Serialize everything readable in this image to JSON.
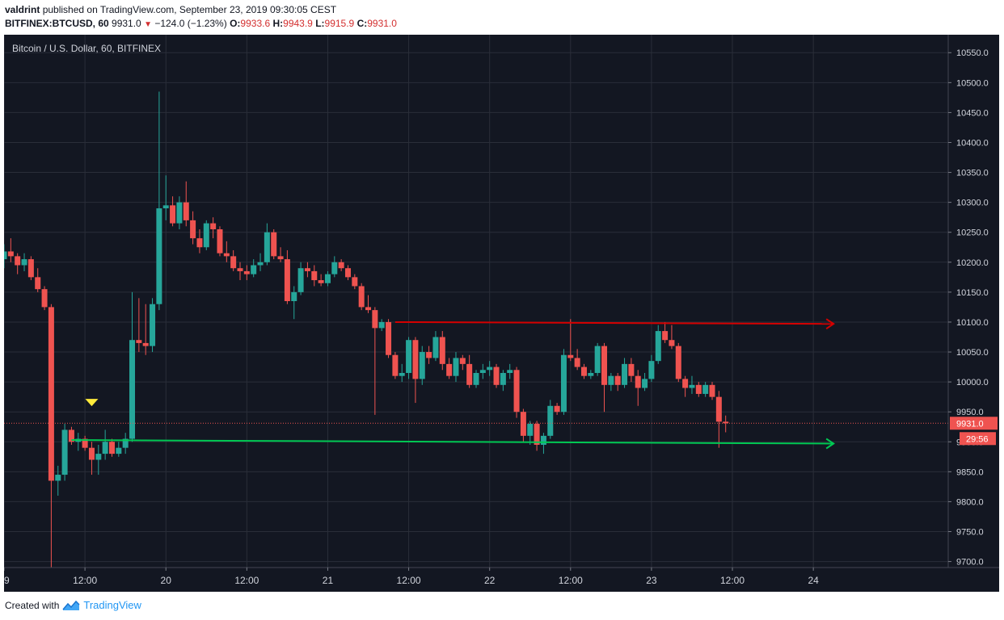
{
  "header": {
    "author": "valdrint",
    "published_text": "published on TradingView.com, September 23, 2019 09:30:05 CEST",
    "symbol": "BITFINEX:BTCUSD, 60",
    "last": "9931.0",
    "change": "−124.0 (−1.23%)",
    "o_label": "O:",
    "o_value": "9933.6",
    "h_label": "H:",
    "h_value": "9943.9",
    "l_label": "L:",
    "l_value": "9915.9",
    "c_label": "C:",
    "c_value": "9931.0"
  },
  "footer": {
    "created_with": "Created with",
    "brand": "TradingView"
  },
  "colors": {
    "background": "#131722",
    "grid": "#2a2e39",
    "up": "#26a69a",
    "down": "#ef5350",
    "resistance": "#d50000",
    "support": "#00c853",
    "marker": "#ffeb3b"
  },
  "chart_data": {
    "type": "candlestick",
    "title": "Bitcoin / U.S. Dollar, 60, BITFINEX",
    "ylim": [
      9690,
      10580
    ],
    "y_ticks": [
      9700,
      9750,
      9800,
      9850,
      9900,
      9950,
      10000,
      10050,
      10100,
      10150,
      10200,
      10250,
      10300,
      10350,
      10400,
      10450,
      10500,
      10550
    ],
    "y_tick_labels": [
      "9700.0",
      "9750.0",
      "9800.0",
      "9850.0",
      "9900.0",
      "9950.0",
      "10000.0",
      "10050.0",
      "10100.0",
      "10150.0",
      "10200.0",
      "10250.0",
      "10300.0",
      "10350.0",
      "10400.0",
      "10450.0",
      "10500.0",
      "10550.0"
    ],
    "x_start": "2019-09-19T00:00",
    "x_end": "2019-09-24T20:00",
    "x_ticks": [
      "2019-09-19T00:00",
      "2019-09-19T12:00",
      "2019-09-20T00:00",
      "2019-09-20T12:00",
      "2019-09-21T00:00",
      "2019-09-21T12:00",
      "2019-09-22T00:00",
      "2019-09-22T12:00",
      "2019-09-23T00:00",
      "2019-09-23T12:00",
      "2019-09-24T00:00"
    ],
    "x_tick_labels": [
      "19",
      "12:00",
      "20",
      "12:00",
      "21",
      "12:00",
      "22",
      "12:00",
      "23",
      "12:00",
      "24"
    ],
    "current_price": "9931.0",
    "countdown": "29:56",
    "annotations": [
      {
        "type": "line",
        "color": "#d50000",
        "from": [
          "2019-09-21T10:00",
          10100
        ],
        "to": [
          "2019-09-24T03:00",
          10097
        ]
      },
      {
        "type": "line",
        "color": "#00c853",
        "from": [
          "2019-09-19T10:00",
          9903
        ],
        "to": [
          "2019-09-24T03:00",
          9897
        ]
      },
      {
        "type": "marker",
        "color": "#ffeb3b",
        "at": [
          "2019-09-19T13:00",
          9965
        ]
      }
    ],
    "candles": [
      [
        "2019-09-19T00:00",
        10205,
        10230,
        10190,
        10218
      ],
      [
        "2019-09-19T01:00",
        10218,
        10240,
        10200,
        10210
      ],
      [
        "2019-09-19T02:00",
        10210,
        10215,
        10180,
        10195
      ],
      [
        "2019-09-19T03:00",
        10195,
        10215,
        10185,
        10205
      ],
      [
        "2019-09-19T04:00",
        10205,
        10210,
        10170,
        10175
      ],
      [
        "2019-09-19T05:00",
        10175,
        10190,
        10150,
        10155
      ],
      [
        "2019-09-19T06:00",
        10155,
        10160,
        10120,
        10125
      ],
      [
        "2019-09-19T07:00",
        10125,
        10130,
        9690,
        9835
      ],
      [
        "2019-09-19T08:00",
        9835,
        9860,
        9810,
        9845
      ],
      [
        "2019-09-19T09:00",
        9845,
        9930,
        9835,
        9920
      ],
      [
        "2019-09-19T10:00",
        9920,
        9925,
        9895,
        9900
      ],
      [
        "2019-09-19T11:00",
        9900,
        9915,
        9885,
        9905
      ],
      [
        "2019-09-19T12:00",
        9905,
        9910,
        9885,
        9890
      ],
      [
        "2019-09-19T13:00",
        9890,
        9900,
        9845,
        9870
      ],
      [
        "2019-09-19T14:00",
        9870,
        9895,
        9845,
        9880
      ],
      [
        "2019-09-19T15:00",
        9880,
        9920,
        9870,
        9900
      ],
      [
        "2019-09-19T16:00",
        9900,
        9905,
        9875,
        9880
      ],
      [
        "2019-09-19T17:00",
        9880,
        9900,
        9875,
        9890
      ],
      [
        "2019-09-19T18:00",
        9890,
        9915,
        9880,
        9905
      ],
      [
        "2019-09-19T19:00",
        9905,
        10150,
        9900,
        10070
      ],
      [
        "2019-09-19T20:00",
        10070,
        10140,
        10050,
        10065
      ],
      [
        "2019-09-19T21:00",
        10065,
        10130,
        10045,
        10060
      ],
      [
        "2019-09-19T22:00",
        10060,
        10140,
        10050,
        10130
      ],
      [
        "2019-09-19T23:00",
        10130,
        10485,
        10120,
        10290
      ],
      [
        "2019-09-20T00:00",
        10290,
        10345,
        10270,
        10295
      ],
      [
        "2019-09-20T01:00",
        10295,
        10310,
        10260,
        10265
      ],
      [
        "2019-09-20T02:00",
        10265,
        10310,
        10255,
        10300
      ],
      [
        "2019-09-20T03:00",
        10300,
        10335,
        10260,
        10270
      ],
      [
        "2019-09-20T04:00",
        10270,
        10285,
        10230,
        10240
      ],
      [
        "2019-09-20T05:00",
        10240,
        10255,
        10215,
        10225
      ],
      [
        "2019-09-20T06:00",
        10225,
        10270,
        10220,
        10265
      ],
      [
        "2019-09-20T07:00",
        10265,
        10275,
        10240,
        10255
      ],
      [
        "2019-09-20T08:00",
        10255,
        10260,
        10210,
        10215
      ],
      [
        "2019-09-20T09:00",
        10215,
        10235,
        10200,
        10210
      ],
      [
        "2019-09-20T10:00",
        10210,
        10220,
        10185,
        10190
      ],
      [
        "2019-09-20T11:00",
        10190,
        10200,
        10170,
        10185
      ],
      [
        "2019-09-20T12:00",
        10185,
        10195,
        10170,
        10180
      ],
      [
        "2019-09-20T13:00",
        10180,
        10205,
        10175,
        10195
      ],
      [
        "2019-09-20T14:00",
        10195,
        10215,
        10185,
        10200
      ],
      [
        "2019-09-20T15:00",
        10200,
        10265,
        10195,
        10250
      ],
      [
        "2019-09-20T16:00",
        10250,
        10255,
        10205,
        10210
      ],
      [
        "2019-09-20T17:00",
        10210,
        10225,
        10200,
        10205
      ],
      [
        "2019-09-20T18:00",
        10205,
        10220,
        10130,
        10135
      ],
      [
        "2019-09-20T19:00",
        10135,
        10160,
        10105,
        10150
      ],
      [
        "2019-09-20T20:00",
        10150,
        10200,
        10145,
        10190
      ],
      [
        "2019-09-20T21:00",
        10190,
        10200,
        10175,
        10185
      ],
      [
        "2019-09-20T22:00",
        10185,
        10195,
        10160,
        10170
      ],
      [
        "2019-09-20T23:00",
        10170,
        10180,
        10160,
        10165
      ],
      [
        "2019-09-21T00:00",
        10165,
        10185,
        10160,
        10180
      ],
      [
        "2019-09-21T01:00",
        10180,
        10210,
        10175,
        10200
      ],
      [
        "2019-09-21T02:00",
        10200,
        10205,
        10185,
        10190
      ],
      [
        "2019-09-21T03:00",
        10190,
        10195,
        10170,
        10175
      ],
      [
        "2019-09-21T04:00",
        10175,
        10180,
        10155,
        10160
      ],
      [
        "2019-09-21T05:00",
        10160,
        10165,
        10120,
        10125
      ],
      [
        "2019-09-21T06:00",
        10125,
        10145,
        10115,
        10120
      ],
      [
        "2019-09-21T07:00",
        10120,
        10125,
        9945,
        10090
      ],
      [
        "2019-09-21T08:00",
        10090,
        10105,
        10085,
        10100
      ],
      [
        "2019-09-21T09:00",
        10100,
        10105,
        10040,
        10045
      ],
      [
        "2019-09-21T10:00",
        10045,
        10050,
        10005,
        10010
      ],
      [
        "2019-09-21T11:00",
        10010,
        10030,
        10000,
        10015
      ],
      [
        "2019-09-21T12:00",
        10015,
        10075,
        10005,
        10070
      ],
      [
        "2019-09-21T13:00",
        10070,
        10075,
        9965,
        10005
      ],
      [
        "2019-09-21T14:00",
        10005,
        10060,
        9995,
        10050
      ],
      [
        "2019-09-21T15:00",
        10050,
        10060,
        10030,
        10040
      ],
      [
        "2019-09-21T16:00",
        10040,
        10085,
        10035,
        10075
      ],
      [
        "2019-09-21T17:00",
        10075,
        10085,
        10020,
        10030
      ],
      [
        "2019-09-21T18:00",
        10030,
        10040,
        10005,
        10010
      ],
      [
        "2019-09-21T19:00",
        10010,
        10050,
        10000,
        10040
      ],
      [
        "2019-09-21T20:00",
        10040,
        10045,
        10020,
        10030
      ],
      [
        "2019-09-21T21:00",
        10030,
        10045,
        9990,
        9995
      ],
      [
        "2019-09-21T22:00",
        9995,
        10020,
        9990,
        10015
      ],
      [
        "2019-09-21T23:00",
        10015,
        10030,
        10005,
        10020
      ],
      [
        "2019-09-22T00:00",
        10020,
        10035,
        10010,
        10025
      ],
      [
        "2019-09-22T01:00",
        10025,
        10030,
        9990,
        9995
      ],
      [
        "2019-09-22T02:00",
        9995,
        10020,
        9985,
        10015
      ],
      [
        "2019-09-22T03:00",
        10015,
        10030,
        10005,
        10020
      ],
      [
        "2019-09-22T04:00",
        10020,
        10025,
        9940,
        9950
      ],
      [
        "2019-09-22T05:00",
        9950,
        9955,
        9900,
        9910
      ],
      [
        "2019-09-22T06:00",
        9910,
        9935,
        9895,
        9930
      ],
      [
        "2019-09-22T07:00",
        9930,
        9935,
        9885,
        9895
      ],
      [
        "2019-09-22T08:00",
        9895,
        9915,
        9880,
        9910
      ],
      [
        "2019-09-22T09:00",
        9910,
        9970,
        9905,
        9960
      ],
      [
        "2019-09-22T10:00",
        9960,
        9965,
        9945,
        9950
      ],
      [
        "2019-09-22T11:00",
        9950,
        10055,
        9945,
        10045
      ],
      [
        "2019-09-22T12:00",
        10045,
        10105,
        10035,
        10040
      ],
      [
        "2019-09-22T13:00",
        10040,
        10055,
        10020,
        10025
      ],
      [
        "2019-09-22T14:00",
        10025,
        10030,
        10005,
        10010
      ],
      [
        "2019-09-22T15:00",
        10010,
        10020,
        10005,
        10015
      ],
      [
        "2019-09-22T16:00",
        10015,
        10065,
        10010,
        10060
      ],
      [
        "2019-09-22T17:00",
        10060,
        10065,
        9950,
        9995
      ],
      [
        "2019-09-22T18:00",
        9995,
        10015,
        9985,
        10010
      ],
      [
        "2019-09-22T19:00",
        10010,
        10015,
        9985,
        9995
      ],
      [
        "2019-09-22T20:00",
        9995,
        10040,
        9990,
        10030
      ],
      [
        "2019-09-22T21:00",
        10030,
        10040,
        10000,
        10010
      ],
      [
        "2019-09-22T22:00",
        10010,
        10020,
        9960,
        9990
      ],
      [
        "2019-09-22T23:00",
        9990,
        10015,
        9985,
        10005
      ],
      [
        "2019-09-23T00:00",
        10005,
        10045,
        10000,
        10035
      ],
      [
        "2019-09-23T01:00",
        10035,
        10095,
        10030,
        10085
      ],
      [
        "2019-09-23T02:00",
        10085,
        10100,
        10065,
        10070
      ],
      [
        "2019-09-23T03:00",
        10070,
        10095,
        10055,
        10060
      ],
      [
        "2019-09-23T04:00",
        10060,
        10065,
        10000,
        10005
      ],
      [
        "2019-09-23T05:00",
        10005,
        10010,
        9975,
        9990
      ],
      [
        "2019-09-23T06:00",
        9990,
        10010,
        9980,
        9995
      ],
      [
        "2019-09-23T07:00",
        9995,
        10000,
        9975,
        9980
      ],
      [
        "2019-09-23T08:00",
        9980,
        10000,
        9975,
        9995
      ],
      [
        "2019-09-23T09:00",
        9995,
        10000,
        9970,
        9975
      ],
      [
        "2019-09-23T10:00",
        9975,
        9985,
        9890,
        9933.6
      ],
      [
        "2019-09-23T11:00",
        9933.6,
        9943.9,
        9915.9,
        9931.0
      ]
    ]
  }
}
